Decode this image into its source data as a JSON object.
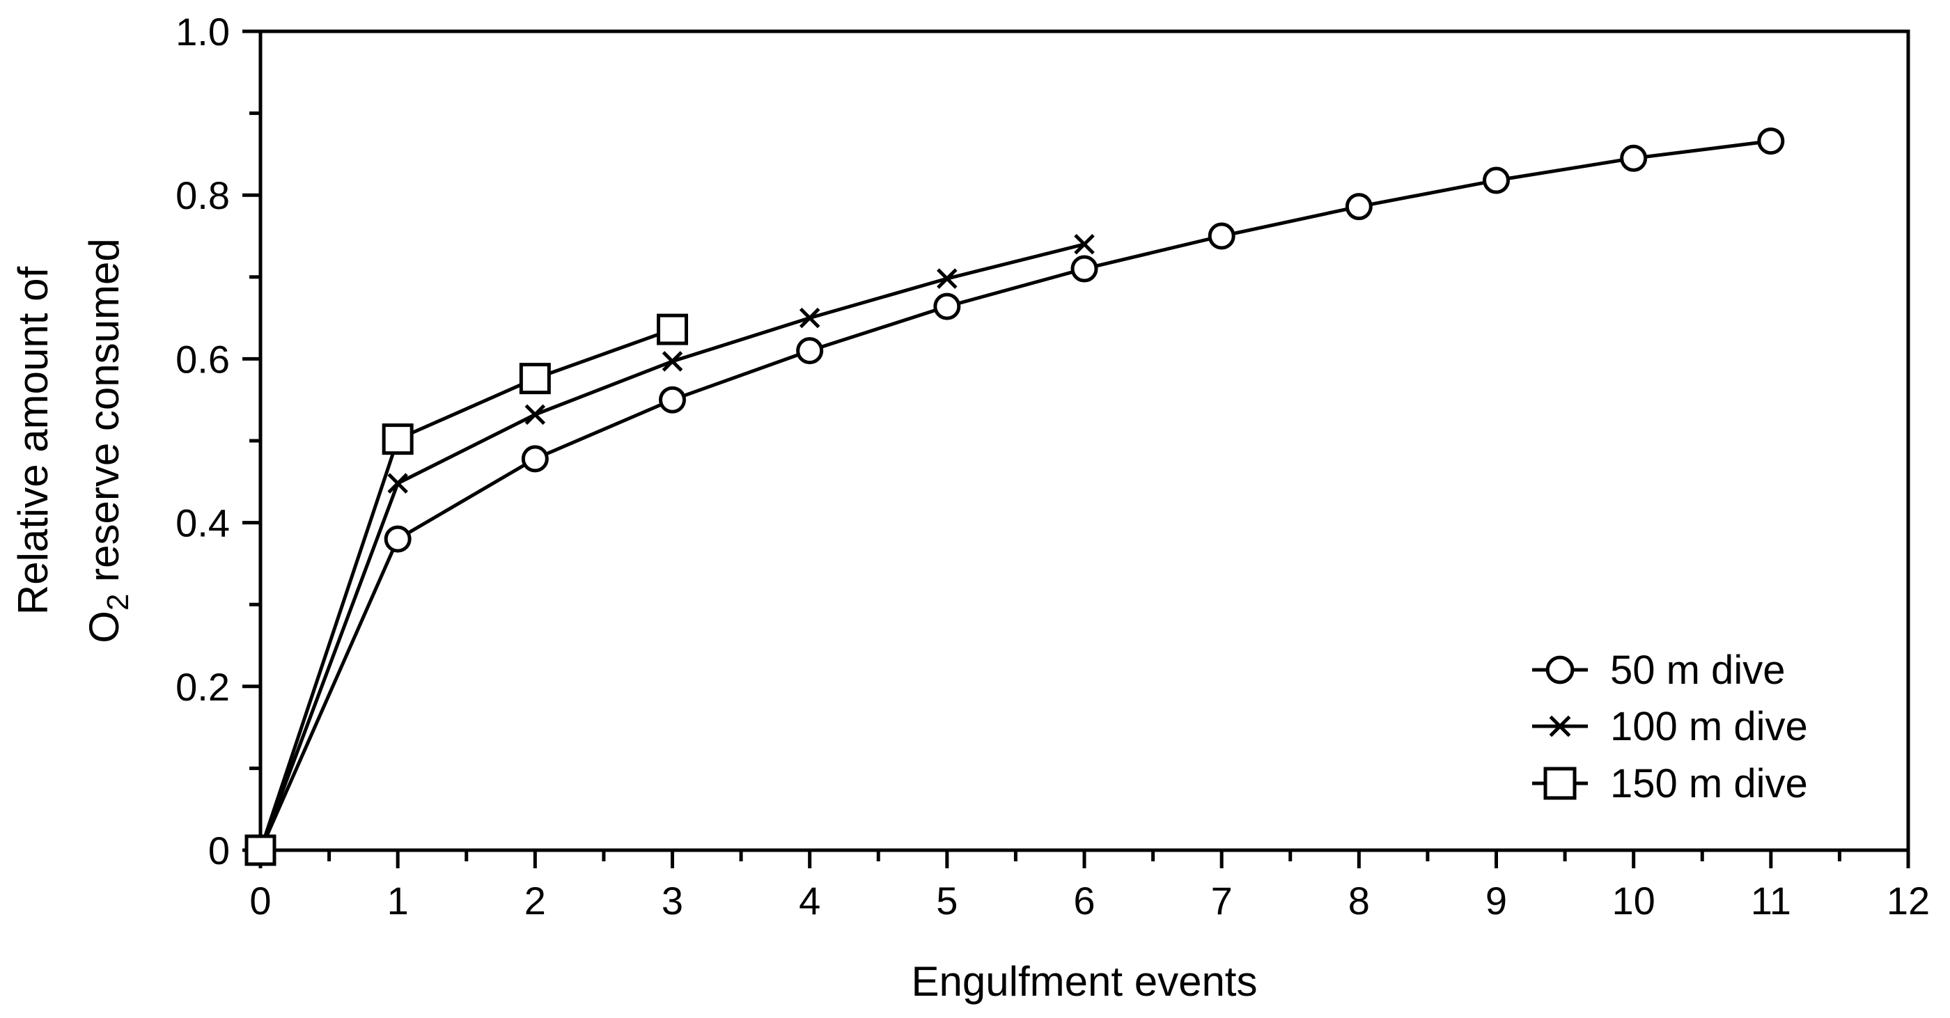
{
  "chart_data": {
    "type": "line",
    "title": "",
    "xlabel": "Engulfment events",
    "ylabel_line1": "Relative amount of",
    "ylabel_line2_main": "O",
    "ylabel_line2_sub": "2",
    "ylabel_line2_rest": " reserve consumed",
    "xlim": [
      0,
      12
    ],
    "ylim": [
      0,
      1.0
    ],
    "x_ticks": [
      0,
      1,
      2,
      3,
      4,
      5,
      6,
      7,
      8,
      9,
      10,
      11,
      12
    ],
    "x_tick_labels": [
      "0",
      "1",
      "2",
      "3",
      "4",
      "5",
      "6",
      "7",
      "8",
      "9",
      "10",
      "11",
      "12"
    ],
    "y_ticks": [
      0,
      0.2,
      0.4,
      0.6,
      0.8,
      1.0
    ],
    "y_tick_labels": [
      "0",
      "0.2",
      "0.4",
      "0.6",
      "0.8",
      "1.0"
    ],
    "grid": false,
    "legend_position": "bottom-right",
    "series": [
      {
        "name": "50 m dive",
        "marker": "circle",
        "x": [
          0,
          1,
          2,
          3,
          4,
          5,
          6,
          7,
          8,
          9,
          10,
          11
        ],
        "values": [
          0,
          0.38,
          0.478,
          0.55,
          0.61,
          0.664,
          0.71,
          0.75,
          0.786,
          0.818,
          0.845,
          0.866
        ]
      },
      {
        "name": "100 m dive",
        "marker": "x",
        "x": [
          0,
          1,
          2,
          3,
          4,
          5,
          6
        ],
        "values": [
          0,
          0.448,
          0.532,
          0.597,
          0.65,
          0.698,
          0.74
        ]
      },
      {
        "name": "150 m dive",
        "marker": "square",
        "x": [
          0,
          1,
          2,
          3
        ],
        "values": [
          0,
          0.502,
          0.576,
          0.636
        ]
      }
    ]
  }
}
